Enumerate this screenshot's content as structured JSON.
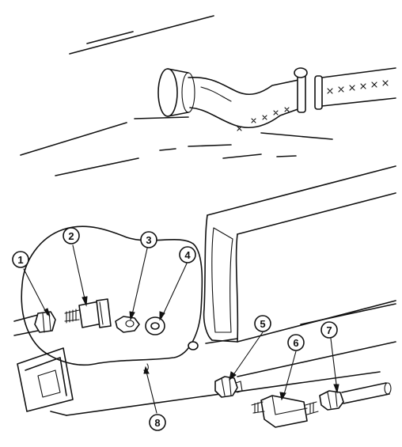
{
  "figure": {
    "callouts": [
      {
        "id": "callout-1",
        "number": "1"
      },
      {
        "id": "callout-2",
        "number": "2"
      },
      {
        "id": "callout-3",
        "number": "3"
      },
      {
        "id": "callout-4",
        "number": "4"
      },
      {
        "id": "callout-5",
        "number": "5"
      },
      {
        "id": "callout-6",
        "number": "6"
      },
      {
        "id": "callout-7",
        "number": "7"
      },
      {
        "id": "callout-8",
        "number": "8"
      }
    ]
  }
}
